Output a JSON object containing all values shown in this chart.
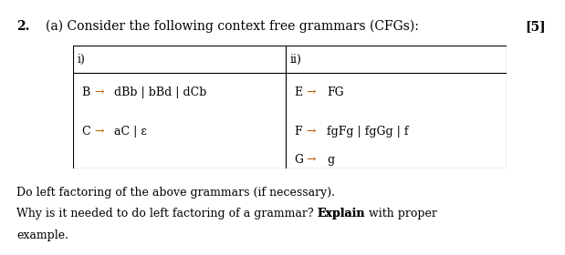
{
  "bg_color": "#ffffff",
  "question_num": "2.",
  "part_a_label": "(a) Consider the following context free grammars (CFGs):",
  "marks": "[5]",
  "text_color": "#000000",
  "orange_color": "#b85c00",
  "font_family": "DejaVu Serif",
  "font_size": 9,
  "arrow": "→",
  "epsilon": "ε"
}
